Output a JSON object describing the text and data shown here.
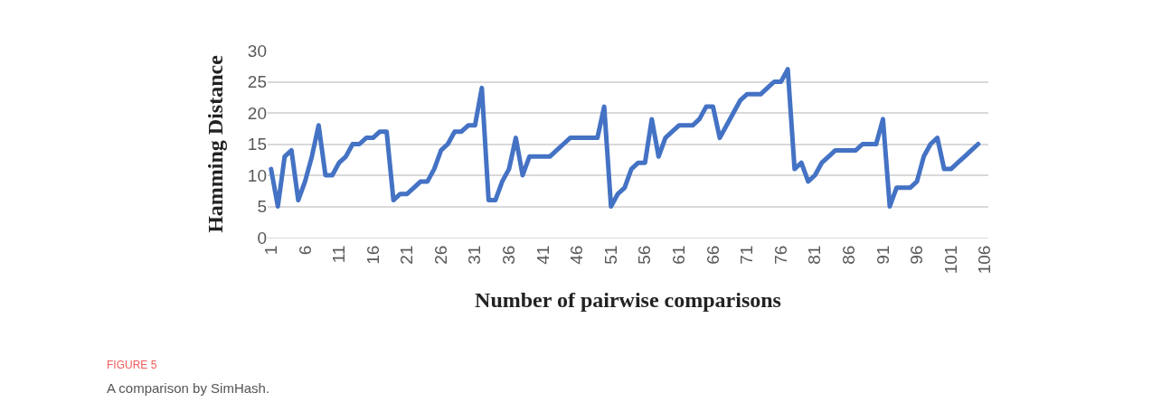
{
  "chart_data": {
    "type": "line",
    "xlabel": "Number of pairwise comparisons",
    "ylabel": "Hamming Distance",
    "annotations": [
      "FIGURE 5",
      "A comparison by SimHash."
    ],
    "x": [
      1,
      2,
      3,
      4,
      5,
      6,
      7,
      8,
      9,
      10,
      11,
      12,
      13,
      14,
      15,
      16,
      17,
      18,
      19,
      20,
      21,
      22,
      23,
      24,
      25,
      26,
      27,
      28,
      29,
      30,
      31,
      32,
      33,
      34,
      35,
      36,
      37,
      38,
      39,
      40,
      41,
      42,
      43,
      44,
      45,
      46,
      47,
      48,
      49,
      50,
      51,
      52,
      53,
      54,
      55,
      56,
      57,
      58,
      59,
      60,
      61,
      62,
      63,
      64,
      65,
      66,
      67,
      68,
      69,
      70,
      71,
      72,
      73,
      74,
      75,
      76,
      77,
      78,
      79,
      80,
      81,
      82,
      83,
      84,
      85,
      86,
      87,
      88,
      89,
      90,
      91,
      92,
      93,
      94,
      95,
      96,
      97,
      98,
      99,
      100,
      101,
      102,
      103,
      104,
      105
    ],
    "series": [
      {
        "color": "#4472c4",
        "values": [
          11,
          5,
          13,
          14,
          6,
          9,
          13,
          18,
          10,
          10,
          12,
          13,
          15,
          15,
          16,
          16,
          17,
          17,
          6,
          7,
          7,
          8,
          9,
          9,
          11,
          14,
          15,
          17,
          17,
          18,
          18,
          24,
          6,
          6,
          9,
          11,
          16,
          10,
          13,
          13,
          13,
          13,
          14,
          15,
          16,
          16,
          16,
          16,
          16,
          21,
          5,
          7,
          8,
          11,
          12,
          12,
          19,
          13,
          16,
          17,
          18,
          18,
          18,
          19,
          21,
          21,
          16,
          18,
          20,
          22,
          23,
          23,
          23,
          24,
          25,
          25,
          27,
          11,
          12,
          9,
          10,
          12,
          13,
          14,
          14,
          14,
          14,
          15,
          15,
          15,
          19,
          5,
          8,
          8,
          8,
          9,
          13,
          15,
          16,
          11,
          11,
          12,
          13,
          14,
          15
        ]
      }
    ],
    "xlim": [
      0.5,
      106.5
    ],
    "xticks": [
      1,
      6,
      11,
      16,
      21,
      26,
      31,
      36,
      41,
      46,
      51,
      56,
      61,
      66,
      71,
      76,
      81,
      86,
      91,
      96,
      101,
      106
    ],
    "ylim": [
      0,
      30
    ],
    "yticks": [
      0,
      5,
      10,
      15,
      20,
      25,
      30
    ],
    "grid": "y",
    "marker": "none",
    "line_style": "solid"
  }
}
